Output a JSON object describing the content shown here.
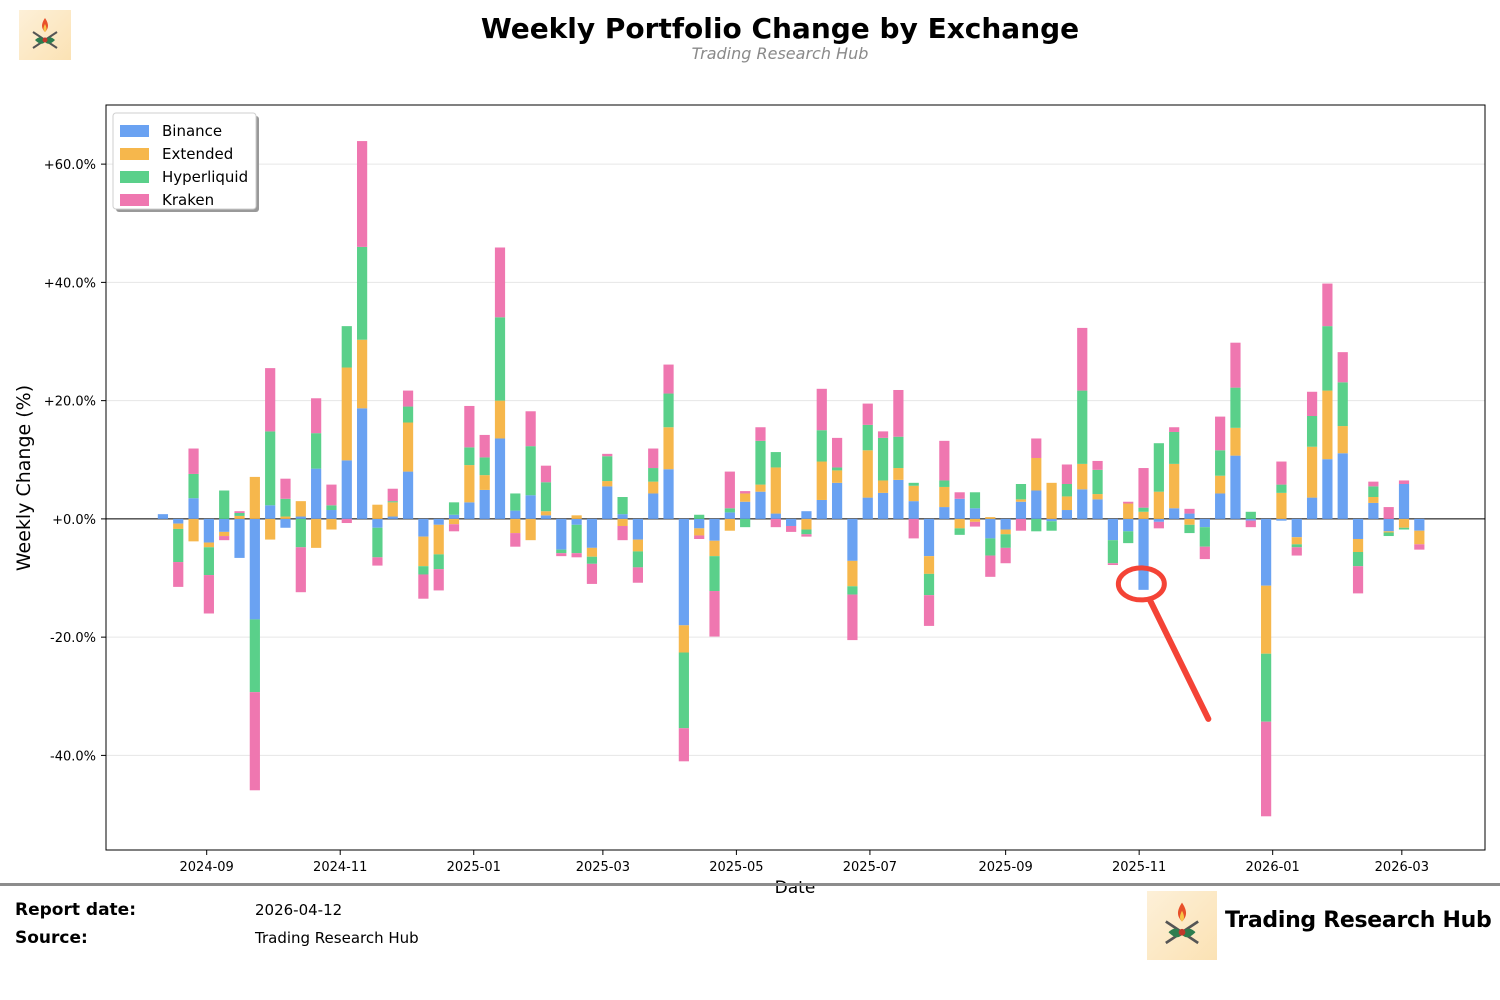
{
  "header": {
    "title": "Weekly Portfolio Change by Exchange",
    "subtitle": "Trading Research Hub"
  },
  "footer": {
    "report_date_label": "Report date:",
    "report_date_value": "2026-04-12",
    "source_label": "Source:",
    "source_value": "Trading Research Hub",
    "brand_name": "Trading Research Hub"
  },
  "icons": {
    "header_logo": "flame-crest-logo-icon",
    "footer_logo": "flame-crest-logo-icon"
  },
  "colors": {
    "Binance": "#6aa2f2",
    "Extended": "#f6b74c",
    "Hyperliquid": "#5ad08a",
    "Kraken": "#ef77b0",
    "annotation": "#f44336"
  },
  "chart_data": {
    "type": "bar",
    "stacked": true,
    "title": "Weekly Portfolio Change by Exchange",
    "xlabel": "Date",
    "ylabel": "Weekly Change (%)",
    "ylim": [
      -56,
      70
    ],
    "xlim": [
      "2024-07-17",
      "2026-04-08"
    ],
    "yticks": [
      60,
      40,
      20,
      0,
      -20,
      -40
    ],
    "ytick_labels": [
      "+60.0%",
      "+40.0%",
      "+20.0%",
      "+0.0%",
      "-20.0%",
      "-40.0%"
    ],
    "xticks": [
      "2024-09-01",
      "2024-11-01",
      "2025-01-01",
      "2025-03-01",
      "2025-05-01",
      "2025-07-01",
      "2025-09-01",
      "2025-11-01",
      "2026-01-01",
      "2026-03-01"
    ],
    "xtick_labels": [
      "2024-09",
      "2024-11",
      "2025-01",
      "2025-03",
      "2025-05",
      "2025-07",
      "2025-09",
      "2025-11",
      "2026-01",
      "2026-03"
    ],
    "grid": true,
    "legend": "upper-left",
    "annotation": {
      "type": "circle-with-arrow",
      "date": "2025-11-02",
      "value": -11
    },
    "weeks": [
      {
        "date": "2024-08-12",
        "values": [
          0.8,
          0,
          0,
          0
        ]
      },
      {
        "date": "2024-08-19",
        "values": [
          -0.8,
          -0.9,
          -5.6,
          -4.2
        ]
      },
      {
        "date": "2024-08-26",
        "values": [
          3.5,
          -3.8,
          4.1,
          4.3
        ]
      },
      {
        "date": "2024-09-02",
        "values": [
          -4.0,
          -0.8,
          -4.7,
          -6.5
        ]
      },
      {
        "date": "2024-09-09",
        "values": [
          -2.2,
          -0.7,
          4.8,
          -0.7
        ]
      },
      {
        "date": "2024-09-16",
        "values": [
          -6.6,
          0.5,
          0.5,
          0.3
        ]
      },
      {
        "date": "2024-09-23",
        "values": [
          -17.0,
          7.1,
          -12.3,
          -16.6
        ]
      },
      {
        "date": "2024-09-30",
        "values": [
          2.3,
          -3.5,
          12.5,
          10.7
        ]
      },
      {
        "date": "2024-10-07",
        "values": [
          -1.5,
          0.4,
          3.0,
          3.4
        ]
      },
      {
        "date": "2024-10-14",
        "values": [
          0.4,
          2.6,
          -4.8,
          -7.6
        ]
      },
      {
        "date": "2024-10-21",
        "values": [
          8.5,
          -4.9,
          6.0,
          5.9
        ]
      },
      {
        "date": "2024-10-28",
        "values": [
          1.5,
          -1.8,
          0.8,
          3.5
        ]
      },
      {
        "date": "2024-11-04",
        "values": [
          9.9,
          15.7,
          7.0,
          -0.7
        ]
      },
      {
        "date": "2024-11-11",
        "values": [
          18.7,
          11.6,
          15.7,
          17.9
        ]
      },
      {
        "date": "2024-11-18",
        "values": [
          -1.5,
          2.4,
          -5.0,
          -1.4
        ]
      },
      {
        "date": "2024-11-25",
        "values": [
          0.4,
          2.4,
          0.2,
          2.1
        ]
      },
      {
        "date": "2024-12-02",
        "values": [
          8.0,
          8.3,
          2.7,
          2.7
        ]
      },
      {
        "date": "2024-12-09",
        "values": [
          -3.0,
          -5.0,
          -1.4,
          -4.1
        ]
      },
      {
        "date": "2024-12-16",
        "values": [
          -1.0,
          -5.0,
          -2.5,
          -3.6
        ]
      },
      {
        "date": "2024-12-23",
        "values": [
          0.7,
          -0.9,
          2.1,
          -1.2
        ]
      },
      {
        "date": "2024-12-30",
        "values": [
          2.8,
          6.3,
          3.0,
          7.0
        ]
      },
      {
        "date": "2025-01-06",
        "values": [
          4.9,
          2.5,
          3.0,
          3.8
        ]
      },
      {
        "date": "2025-01-13",
        "values": [
          13.6,
          6.4,
          14.1,
          11.8
        ]
      },
      {
        "date": "2025-01-20",
        "values": [
          1.4,
          -2.4,
          2.9,
          -2.3
        ]
      },
      {
        "date": "2025-01-27",
        "values": [
          4.0,
          -3.6,
          8.3,
          5.9
        ]
      },
      {
        "date": "2025-02-03",
        "values": [
          0.6,
          0.7,
          4.9,
          2.8
        ]
      },
      {
        "date": "2025-02-10",
        "values": [
          -5.2,
          0,
          -0.6,
          -0.5
        ]
      },
      {
        "date": "2025-02-17",
        "values": [
          -1.0,
          0.6,
          -4.8,
          -0.7
        ]
      },
      {
        "date": "2025-02-24",
        "values": [
          -4.9,
          -1.5,
          -1.2,
          -3.4
        ]
      },
      {
        "date": "2025-03-03",
        "values": [
          5.5,
          0.9,
          4.2,
          0.4
        ]
      },
      {
        "date": "2025-03-10",
        "values": [
          0.8,
          -1.2,
          2.9,
          -2.4
        ]
      },
      {
        "date": "2025-03-17",
        "values": [
          -3.5,
          -2.0,
          -2.7,
          -2.6
        ]
      },
      {
        "date": "2025-03-24",
        "values": [
          4.3,
          2.0,
          2.3,
          3.3
        ]
      },
      {
        "date": "2025-03-31",
        "values": [
          8.4,
          7.1,
          5.7,
          4.9
        ]
      },
      {
        "date": "2025-04-07",
        "values": [
          -18.0,
          -4.6,
          -12.8,
          -5.6
        ]
      },
      {
        "date": "2025-04-14",
        "values": [
          -1.6,
          -1.2,
          0.7,
          -0.6
        ]
      },
      {
        "date": "2025-04-21",
        "values": [
          -3.7,
          -2.6,
          -5.9,
          -7.7
        ]
      },
      {
        "date": "2025-04-28",
        "values": [
          1.1,
          -2.0,
          0.7,
          6.2
        ]
      },
      {
        "date": "2025-05-05",
        "values": [
          2.9,
          1.4,
          -1.4,
          0.4
        ]
      },
      {
        "date": "2025-05-12",
        "values": [
          4.6,
          1.2,
          7.4,
          2.3
        ]
      },
      {
        "date": "2025-05-19",
        "values": [
          0.9,
          7.8,
          2.6,
          -1.4
        ]
      },
      {
        "date": "2025-05-26",
        "values": [
          -1.2,
          0,
          0,
          -1.0
        ]
      },
      {
        "date": "2025-06-02",
        "values": [
          1.3,
          -1.8,
          -0.8,
          -0.4
        ]
      },
      {
        "date": "2025-06-09",
        "values": [
          3.2,
          6.5,
          5.3,
          7.0
        ]
      },
      {
        "date": "2025-06-16",
        "values": [
          6.1,
          2.1,
          0.5,
          5.0
        ]
      },
      {
        "date": "2025-06-23",
        "values": [
          -7.1,
          -4.3,
          -1.4,
          -7.7
        ]
      },
      {
        "date": "2025-06-30",
        "values": [
          3.6,
          8.0,
          4.3,
          3.6
        ]
      },
      {
        "date": "2025-07-07",
        "values": [
          4.4,
          2.1,
          7.2,
          1.1
        ]
      },
      {
        "date": "2025-07-14",
        "values": [
          6.6,
          2.0,
          5.3,
          7.9
        ]
      },
      {
        "date": "2025-07-21",
        "values": [
          3.0,
          2.6,
          0.5,
          -3.3
        ]
      },
      {
        "date": "2025-07-28",
        "values": [
          -6.3,
          -3.0,
          -3.6,
          -5.2
        ]
      },
      {
        "date": "2025-08-04",
        "values": [
          2.0,
          3.4,
          1.1,
          6.7
        ]
      },
      {
        "date": "2025-08-11",
        "values": [
          3.4,
          -1.6,
          -1.1,
          1.1
        ]
      },
      {
        "date": "2025-08-18",
        "values": [
          1.8,
          -0.5,
          2.7,
          -0.8
        ]
      },
      {
        "date": "2025-08-25",
        "values": [
          -3.3,
          0.3,
          -2.9,
          -3.6
        ]
      },
      {
        "date": "2025-09-01",
        "values": [
          -1.8,
          -0.8,
          -2.3,
          -2.6
        ]
      },
      {
        "date": "2025-09-08",
        "values": [
          2.9,
          0.4,
          2.6,
          -2.0
        ]
      },
      {
        "date": "2025-09-15",
        "values": [
          4.8,
          5.5,
          -2.1,
          3.3
        ]
      },
      {
        "date": "2025-09-22",
        "values": [
          -0.4,
          6.1,
          -1.6,
          0
        ]
      },
      {
        "date": "2025-09-29",
        "values": [
          1.5,
          2.3,
          2.1,
          3.3
        ]
      },
      {
        "date": "2025-10-06",
        "values": [
          5.0,
          4.3,
          12.4,
          10.6
        ]
      },
      {
        "date": "2025-10-13",
        "values": [
          3.3,
          0.9,
          4.1,
          1.5
        ]
      },
      {
        "date": "2025-10-20",
        "values": [
          -3.6,
          0,
          -3.9,
          -0.3
        ]
      },
      {
        "date": "2025-10-27",
        "values": [
          -2.1,
          2.6,
          -2.0,
          0.3
        ]
      },
      {
        "date": "2025-11-03",
        "values": [
          -12.0,
          1.2,
          0.7,
          6.7
        ]
      },
      {
        "date": "2025-11-10",
        "values": [
          -0.5,
          4.6,
          8.2,
          -1.1
        ]
      },
      {
        "date": "2025-11-17",
        "values": [
          1.8,
          7.5,
          5.4,
          0.8
        ]
      },
      {
        "date": "2025-11-24",
        "values": [
          0.9,
          -1.0,
          -1.4,
          0.8
        ]
      },
      {
        "date": "2025-12-01",
        "values": [
          -1.4,
          0,
          -3.3,
          -2.1
        ]
      },
      {
        "date": "2025-12-08",
        "values": [
          4.3,
          3.0,
          4.3,
          5.7
        ]
      },
      {
        "date": "2025-12-15",
        "values": [
          10.7,
          4.7,
          6.8,
          7.6
        ]
      },
      {
        "date": "2025-12-22",
        "values": [
          -0.3,
          0,
          1.2,
          -1.1
        ]
      },
      {
        "date": "2025-12-29",
        "values": [
          -11.3,
          -11.5,
          -11.5,
          -16.0
        ]
      },
      {
        "date": "2026-01-05",
        "values": [
          -0.3,
          4.4,
          1.4,
          3.9
        ]
      },
      {
        "date": "2026-01-12",
        "values": [
          -3.1,
          -1.2,
          -0.5,
          -1.4
        ]
      },
      {
        "date": "2026-01-19",
        "values": [
          3.6,
          8.6,
          5.2,
          4.1
        ]
      },
      {
        "date": "2026-01-26",
        "values": [
          10.1,
          11.6,
          10.9,
          7.2
        ]
      },
      {
        "date": "2026-02-02",
        "values": [
          11.1,
          4.6,
          7.4,
          5.1
        ]
      },
      {
        "date": "2026-02-09",
        "values": [
          -3.4,
          -2.2,
          -2.4,
          -4.6
        ]
      },
      {
        "date": "2026-02-16",
        "values": [
          2.7,
          1.0,
          1.8,
          0.8
        ]
      },
      {
        "date": "2026-02-23",
        "values": [
          -2.1,
          -0.2,
          -0.6,
          2.0
        ]
      },
      {
        "date": "2026-03-02",
        "values": [
          5.9,
          -1.5,
          -0.3,
          0.6
        ]
      },
      {
        "date": "2026-03-09",
        "values": [
          -2.0,
          -2.3,
          0,
          -0.9
        ]
      }
    ],
    "series": [
      {
        "name": "Binance"
      },
      {
        "name": "Extended"
      },
      {
        "name": "Hyperliquid"
      },
      {
        "name": "Kraken"
      }
    ]
  }
}
